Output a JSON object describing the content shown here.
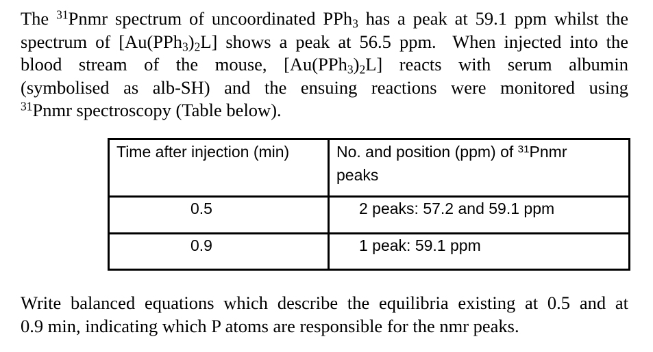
{
  "colors": {
    "background": "#ffffff",
    "text": "#000000",
    "table_border": "#000000"
  },
  "intro": {
    "lines": [
      {
        "t0": "The ",
        "t1": "31",
        "t2": "Pnmr spectrum of uncoordinated PPh",
        "t3": "3",
        "t4": " has a peak at 59.1 ppm whilst the"
      },
      {
        "t0": "spectrum of [Au(PPh",
        "t1": "3",
        "t2": ")",
        "t3": "2",
        "t4": "L] shows a peak at 56.5 ppm.  When injected into the"
      },
      {
        "t0": "blood stream of the mouse, [Au(PPh",
        "t1": "3",
        "t2": ")",
        "t3": "2",
        "t4": "L] reacts with serum albumin"
      },
      {
        "t0": "(symbolised as alb-SH) and the ensuing reactions were monitored using"
      },
      {
        "t0": "31",
        "t1": "Pnmr spectroscopy (Table below)."
      }
    ]
  },
  "table": {
    "header": {
      "time_label": "Time after injection (min)",
      "peaks_prefix": "No. and position (ppm) of ",
      "peaks_sup": "31",
      "peaks_suffix": "Pnmr",
      "peaks_line2": "peaks"
    },
    "rows": [
      {
        "time": "0.5",
        "peaks": "2 peaks: 57.2 and 59.1 ppm"
      },
      {
        "time": "0.9",
        "peaks": "1 peak: 59.1 ppm"
      }
    ]
  },
  "question": {
    "lines": [
      {
        "t0": "Write balanced equations which describe the equilibria existing at 0.5 and at"
      },
      {
        "t0": "0.9 min, indicating which P atoms are responsible for the nmr peaks."
      }
    ]
  }
}
